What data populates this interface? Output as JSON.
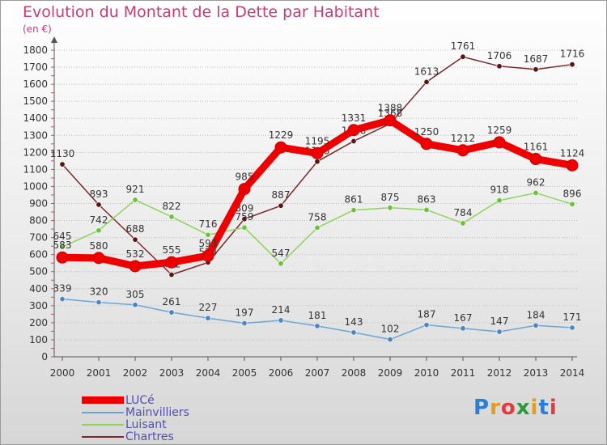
{
  "header": {
    "title": "Evolution du Montant de la Dette par Habitant",
    "unit": "(en €)"
  },
  "logo": {
    "letters": [
      "P",
      "r",
      "o",
      "x",
      "i",
      "t",
      "i"
    ],
    "colors": [
      "#2a7fd4",
      "#e89a1c",
      "#e23d3d",
      "#2a9a3a",
      "#e89a1c",
      "#2a7fd4",
      "#e23d3d"
    ]
  },
  "chart_data": {
    "type": "line",
    "x": [
      "2000",
      "2001",
      "2002",
      "2003",
      "2004",
      "2005",
      "2006",
      "2007",
      "2008",
      "2009",
      "2010",
      "2011",
      "2012",
      "2013",
      "2014"
    ],
    "ylim": [
      0,
      1800
    ],
    "yticks": [
      0,
      100,
      200,
      300,
      400,
      500,
      600,
      700,
      800,
      900,
      1000,
      1100,
      1200,
      1300,
      1400,
      1500,
      1600,
      1700,
      1800
    ],
    "grid": "horizontal",
    "legend_position": "bottom-left",
    "series": [
      {
        "name": "Chartres",
        "color": "#7a2a2a",
        "dot": "#5a1414",
        "values": [
          1130,
          893,
          688,
          482,
          554,
          809,
          887,
          1146,
          1266,
          1368,
          1613,
          1761,
          1706,
          1687,
          1716
        ],
        "labels": [
          "1130",
          "893",
          "688",
          "482",
          "554",
          "809",
          "887",
          "1146",
          "1266",
          "1368",
          "1613",
          "1761",
          "1706",
          "1687",
          "1716"
        ]
      },
      {
        "name": "Luisant",
        "color": "#8fd45a",
        "dot": "#6cc23a",
        "values": [
          645,
          742,
          921,
          822,
          716,
          759,
          547,
          758,
          861,
          875,
          863,
          784,
          918,
          962,
          896
        ],
        "labels": [
          "645",
          "742",
          "921",
          "822",
          "716",
          "759",
          "547",
          "758",
          "861",
          "875",
          "863",
          "784",
          "918",
          "962",
          "896"
        ]
      },
      {
        "name": "Mainvilliers",
        "color": "#6aa6d8",
        "dot": "#4a86c0",
        "values": [
          339,
          320,
          305,
          261,
          227,
          197,
          214,
          181,
          143,
          102,
          187,
          167,
          147,
          184,
          171
        ],
        "labels": [
          "339",
          "320",
          "305",
          "261",
          "227",
          "197",
          "214",
          "181",
          "143",
          "102",
          "187",
          "167",
          "147",
          "184",
          "171"
        ]
      },
      {
        "name": "LUCé",
        "color": "#ee0000",
        "dot": "#ee0000",
        "values": [
          583,
          580,
          532,
          555,
          593,
          985,
          1229,
          1195,
          1331,
          1388,
          1250,
          1212,
          1259,
          1161,
          1124
        ],
        "labels": [
          "583",
          "580",
          "532",
          "555",
          "593",
          "985",
          "1229",
          "1195",
          "1331",
          "1388",
          "1250",
          "1212",
          "1259",
          "1161",
          "1124"
        ]
      }
    ],
    "legend": [
      {
        "name": "LUCé",
        "color": "#ee0000"
      },
      {
        "name": "Mainvilliers",
        "color": "#6aa6d8"
      },
      {
        "name": "Luisant",
        "color": "#8fd45a"
      },
      {
        "name": "Chartres",
        "color": "#7a2a2a"
      }
    ]
  }
}
